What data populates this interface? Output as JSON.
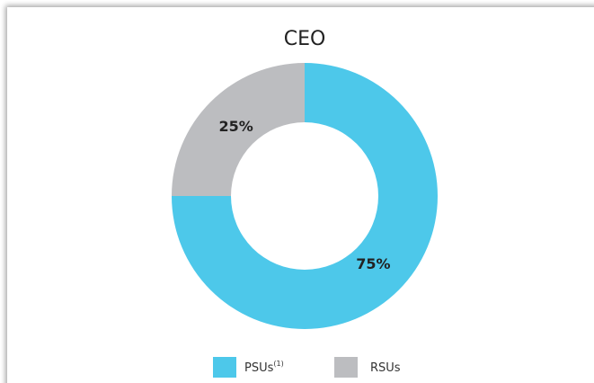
{
  "chart_data": {
    "type": "pie",
    "title": "CEO",
    "categories": [
      "PSUs",
      "RSUs"
    ],
    "category_superscripts": [
      "(1)",
      null
    ],
    "values": [
      75,
      25
    ],
    "value_labels": [
      "75%",
      "25%"
    ],
    "colors": [
      "#4dc8ea",
      "#bcbdc0"
    ],
    "donut": true,
    "legend": "bottom"
  }
}
